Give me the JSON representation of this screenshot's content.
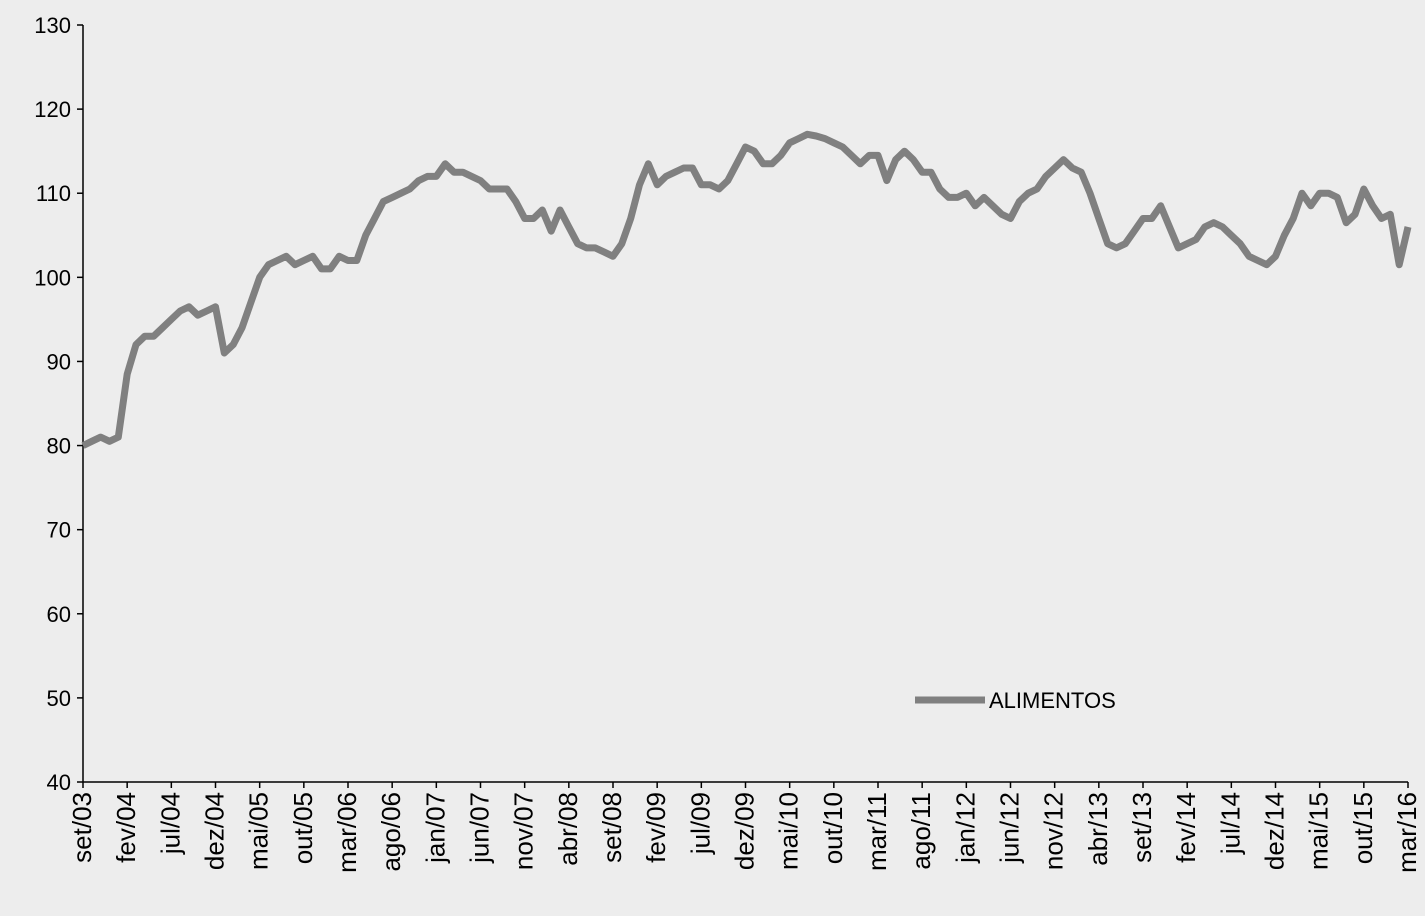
{
  "chart_data": {
    "type": "line",
    "categories": [
      "set/03",
      null,
      null,
      null,
      null,
      "fev/04",
      null,
      null,
      null,
      null,
      "jul/04",
      null,
      null,
      null,
      null,
      "dez/04",
      null,
      null,
      null,
      null,
      "mai/05",
      null,
      null,
      null,
      null,
      "out/05",
      null,
      null,
      null,
      null,
      "mar/06",
      null,
      null,
      null,
      null,
      "ago/06",
      null,
      null,
      null,
      null,
      "jan/07",
      null,
      null,
      null,
      null,
      "jun/07",
      null,
      null,
      null,
      null,
      "nov/07",
      null,
      null,
      null,
      null,
      "abr/08",
      null,
      null,
      null,
      null,
      "set/08",
      null,
      null,
      null,
      null,
      "fev/09",
      null,
      null,
      null,
      null,
      "jul/09",
      null,
      null,
      null,
      null,
      "dez/09",
      null,
      null,
      null,
      null,
      "mai/10",
      null,
      null,
      null,
      null,
      "out/10",
      null,
      null,
      null,
      null,
      "mar/11",
      null,
      null,
      null,
      null,
      "ago/11",
      null,
      null,
      null,
      null,
      "jan/12",
      null,
      null,
      null,
      null,
      "jun/12",
      null,
      null,
      null,
      null,
      "nov/12",
      null,
      null,
      null,
      null,
      "abr/13",
      null,
      null,
      null,
      null,
      "set/13",
      null,
      null,
      null,
      null,
      "fev/14",
      null,
      null,
      null,
      null,
      "jul/14",
      null,
      null,
      null,
      null,
      "dez/14",
      null,
      null,
      null,
      null,
      "mai/15",
      null,
      null,
      null,
      null,
      "out/15",
      null,
      null,
      null,
      null,
      "mar/16"
    ],
    "series": [
      {
        "name": "ALIMENTOS",
        "color": "#808080",
        "values": [
          80,
          80.5,
          81,
          80.5,
          81,
          88.5,
          92,
          93,
          93,
          94,
          95,
          96,
          96.5,
          95.5,
          96,
          96.5,
          91,
          92,
          94,
          97,
          100,
          101.5,
          102,
          102.5,
          101.5,
          102,
          102.5,
          101,
          101,
          102.5,
          102,
          102,
          105,
          107,
          109,
          109.5,
          110,
          110.5,
          111.5,
          112,
          112,
          113.5,
          112.5,
          112.5,
          112,
          111.5,
          110.5,
          110.5,
          110.5,
          109,
          107,
          107,
          108,
          105.5,
          108,
          106,
          104,
          103.5,
          103.5,
          103,
          102.5,
          104,
          107,
          111,
          113.5,
          111,
          112,
          112.5,
          113,
          113,
          111,
          111,
          110.5,
          111.5,
          113.5,
          115.5,
          115,
          113.5,
          113.5,
          114.5,
          116,
          116.5,
          117,
          116.8,
          116.5,
          116,
          115.5,
          114.5,
          113.5,
          114.5,
          114.5,
          111.5,
          114,
          115,
          114,
          112.5,
          112.5,
          110.5,
          109.5,
          109.5,
          110,
          108.5,
          109.5,
          108.5,
          107.5,
          107,
          109,
          110,
          110.5,
          112,
          113,
          114,
          113,
          112.5,
          110,
          107,
          104,
          103.5,
          104,
          105.5,
          107,
          107,
          108.5,
          106,
          103.5,
          104,
          104.5,
          106,
          106.5,
          106,
          105,
          104,
          102.5,
          102,
          101.5,
          102.5,
          105,
          107,
          110,
          108.5,
          110,
          110,
          109.5,
          106.5,
          107.5,
          110.5,
          108.5,
          107,
          107.5,
          101.5,
          106
        ]
      }
    ],
    "ylim": [
      40,
      130
    ],
    "yticks": [
      40,
      50,
      60,
      70,
      80,
      90,
      100,
      110,
      120,
      130
    ],
    "grid": false,
    "legend": "lower right"
  }
}
